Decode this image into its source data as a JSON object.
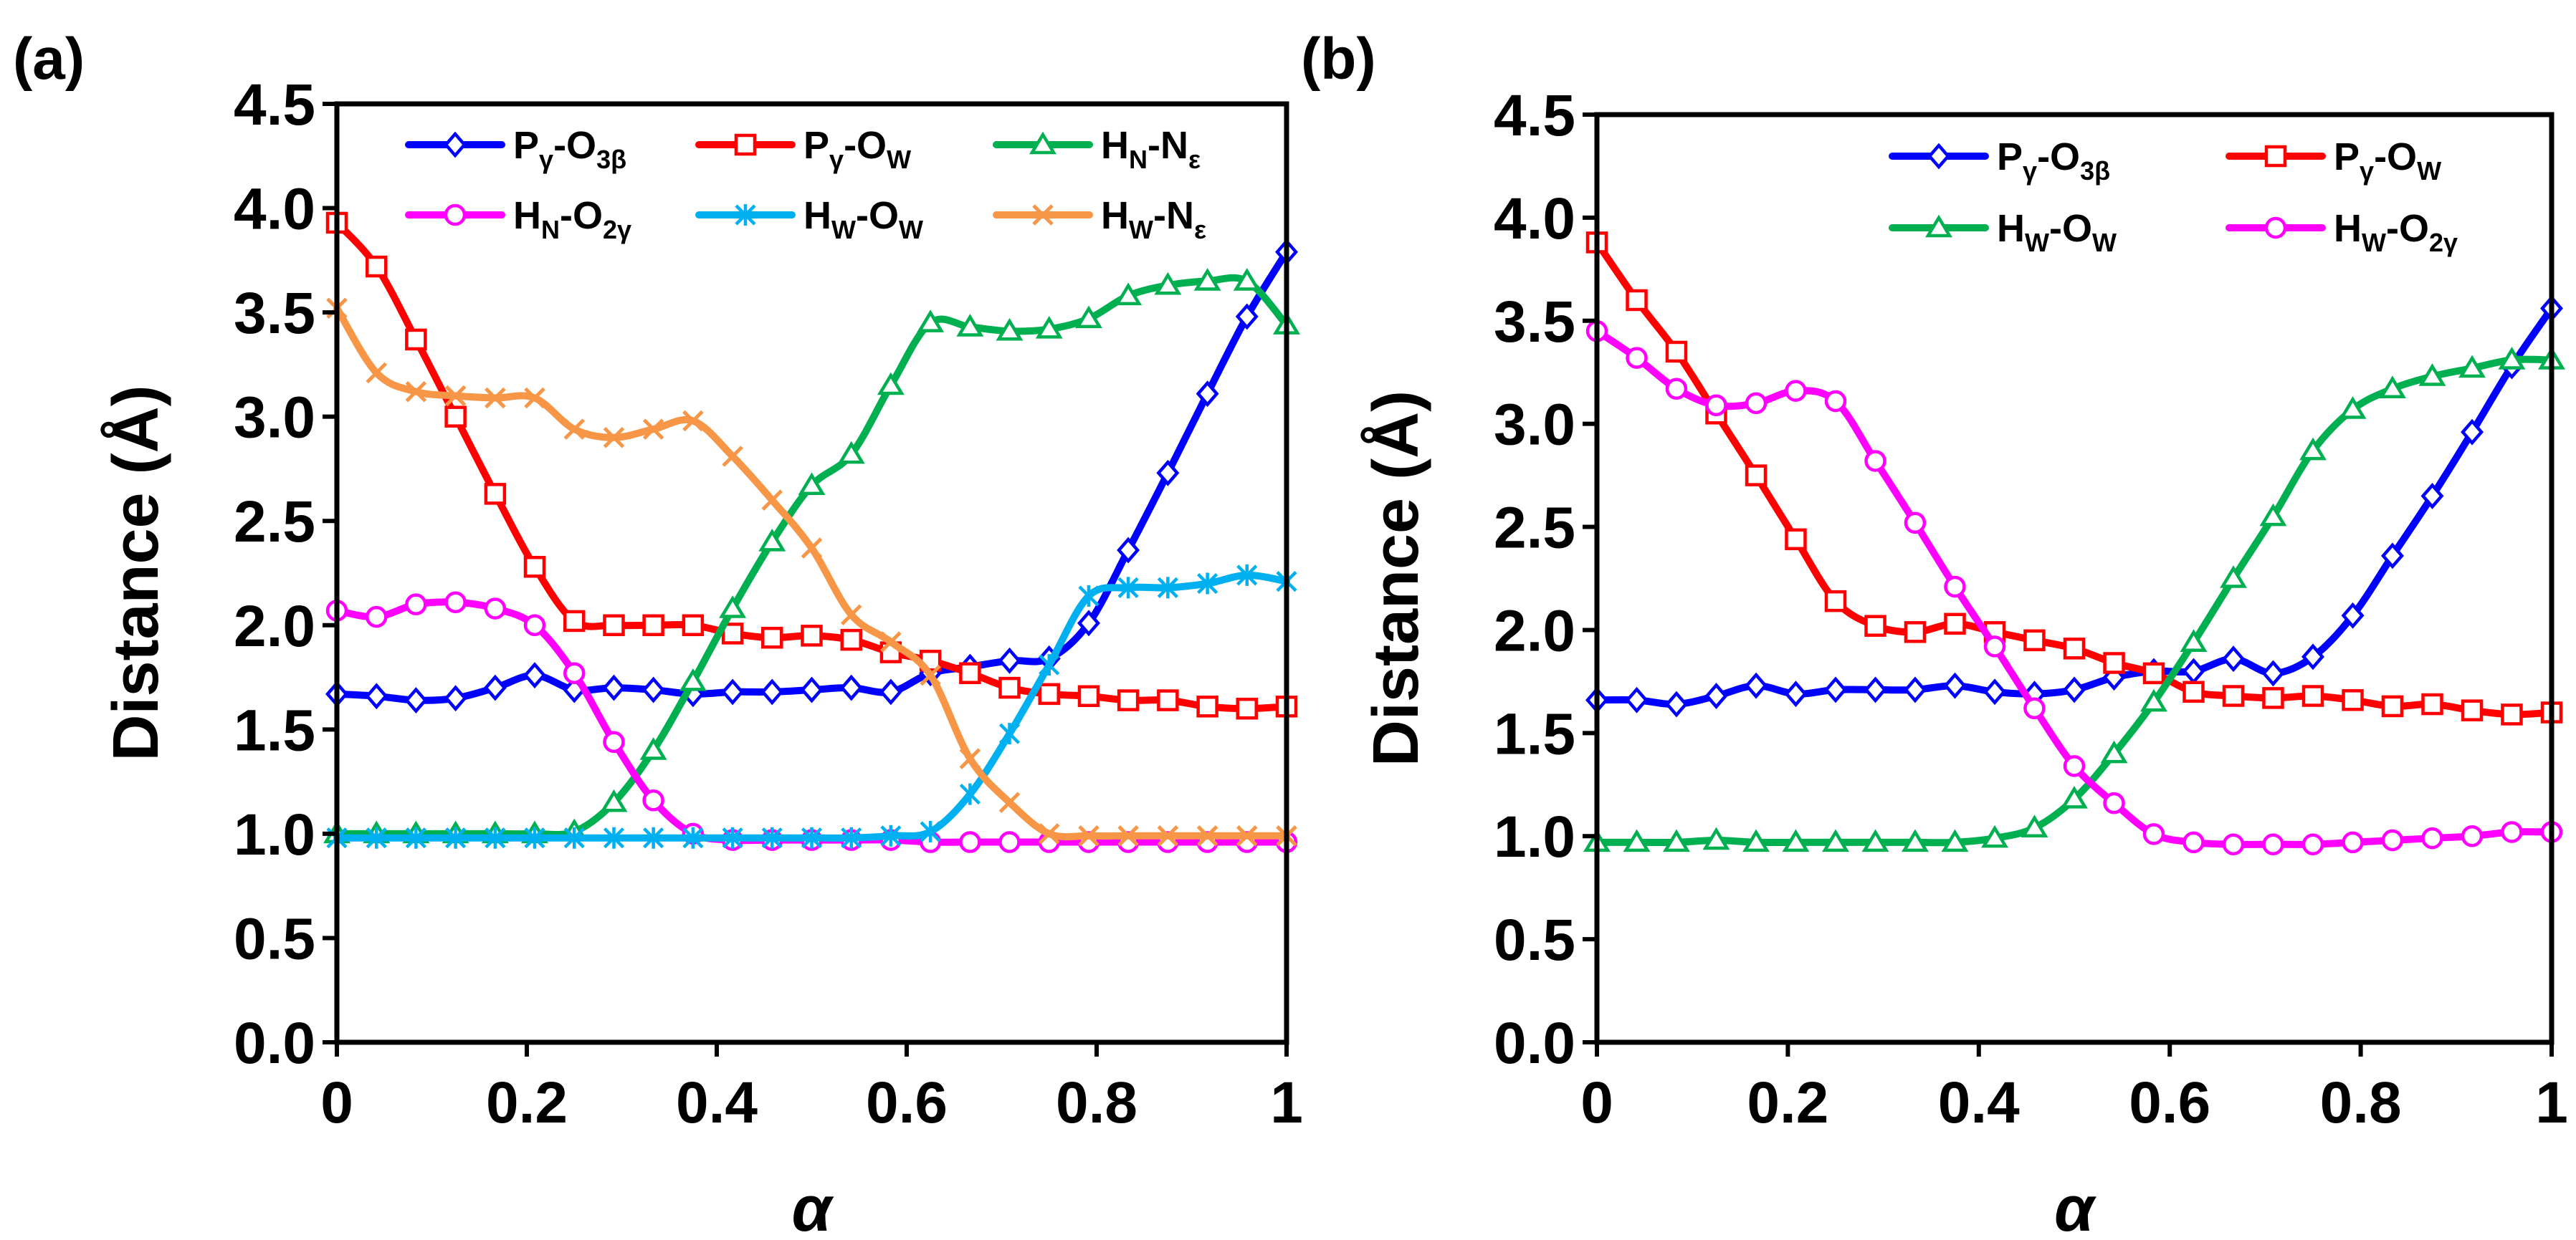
{
  "chart_data": [
    {
      "panel_label": "(a)",
      "type": "line",
      "xlabel": "α",
      "ylabel": "Distance (Å)",
      "xlim": [
        0,
        1
      ],
      "ylim": [
        0,
        4.5
      ],
      "xticks": [
        0,
        0.2,
        0.4,
        0.6,
        0.8,
        1
      ],
      "xtick_labels": [
        "0",
        "0.2",
        "0.4",
        "0.6",
        "0.8",
        "1"
      ],
      "yticks": [
        0,
        0.5,
        1,
        1.5,
        2,
        2.5,
        3,
        3.5,
        4,
        4.5
      ],
      "ytick_labels": [
        "0.0",
        "0.5",
        "1.0",
        "1.5",
        "2.0",
        "2.5",
        "3.0",
        "3.5",
        "4.0",
        "4.5"
      ],
      "x": [
        0,
        0.0417,
        0.0833,
        0.125,
        0.1667,
        0.2083,
        0.25,
        0.2917,
        0.3333,
        0.375,
        0.4167,
        0.4583,
        0.5,
        0.5417,
        0.5833,
        0.625,
        0.6667,
        0.7083,
        0.75,
        0.7917,
        0.8333,
        0.875,
        0.9167,
        0.9583,
        1
      ],
      "series": [
        {
          "name": "Pγ-O3β",
          "base": "P",
          "sub1": "γ",
          "mid": "-O",
          "sub2": "3β",
          "color": "#0000ff",
          "marker": "diamond",
          "values": [
            1.67,
            1.66,
            1.64,
            1.65,
            1.7,
            1.76,
            1.69,
            1.7,
            1.69,
            1.67,
            1.68,
            1.68,
            1.69,
            1.7,
            1.68,
            1.77,
            1.8,
            1.83,
            1.84,
            2.01,
            2.36,
            2.73,
            3.11,
            3.48,
            3.79
          ]
        },
        {
          "name": "Pγ-OW",
          "base": "P",
          "sub1": "γ",
          "mid": "-O",
          "sub2": "W",
          "color": "#ff0000",
          "marker": "square",
          "values": [
            3.93,
            3.72,
            3.37,
            3.0,
            2.63,
            2.28,
            2.02,
            2.0,
            2.0,
            2.0,
            1.96,
            1.94,
            1.95,
            1.93,
            1.87,
            1.83,
            1.77,
            1.7,
            1.67,
            1.66,
            1.64,
            1.64,
            1.61,
            1.6,
            1.61
          ]
        },
        {
          "name": "HN-Nε",
          "base": "H",
          "sub1": "N",
          "mid": "-N",
          "sub2": "ε",
          "color": "#00b050",
          "marker": "triangle",
          "values": [
            1.0,
            1.0,
            1.0,
            1.0,
            1.0,
            1.0,
            1.01,
            1.15,
            1.4,
            1.73,
            2.08,
            2.4,
            2.67,
            2.82,
            3.15,
            3.45,
            3.43,
            3.41,
            3.42,
            3.47,
            3.58,
            3.63,
            3.65,
            3.65,
            3.44
          ]
        },
        {
          "name": "HN-O2γ",
          "base": "H",
          "sub1": "N",
          "mid": "-O",
          "sub2": "2γ",
          "color": "#ff00ff",
          "marker": "circle",
          "values": [
            2.07,
            2.04,
            2.1,
            2.11,
            2.08,
            2.0,
            1.77,
            1.44,
            1.16,
            1.0,
            0.97,
            0.97,
            0.97,
            0.97,
            0.97,
            0.96,
            0.96,
            0.96,
            0.96,
            0.96,
            0.96,
            0.96,
            0.96,
            0.96,
            0.96
          ]
        },
        {
          "name": "HW-OW",
          "base": "H",
          "sub1": "W",
          "mid": "-O",
          "sub2": "W",
          "color": "#00b0f0",
          "marker": "star",
          "values": [
            0.98,
            0.98,
            0.98,
            0.98,
            0.98,
            0.98,
            0.98,
            0.98,
            0.98,
            0.98,
            0.98,
            0.98,
            0.98,
            0.98,
            0.99,
            1.01,
            1.19,
            1.48,
            1.81,
            2.14,
            2.18,
            2.18,
            2.2,
            2.24,
            2.21
          ]
        },
        {
          "name": "HW-Nε",
          "base": "H",
          "sub1": "W",
          "mid": "-N",
          "sub2": "ε",
          "color": "#f79646",
          "marker": "x",
          "values": [
            3.52,
            3.21,
            3.12,
            3.1,
            3.09,
            3.09,
            2.94,
            2.9,
            2.94,
            2.98,
            2.81,
            2.6,
            2.37,
            2.05,
            1.92,
            1.76,
            1.36,
            1.15,
            1.0,
            0.99,
            0.99,
            0.99,
            0.99,
            0.99,
            0.99
          ]
        }
      ]
    },
    {
      "panel_label": "(b)",
      "type": "line",
      "xlabel": "α",
      "ylabel": "Distance (Å)",
      "xlim": [
        0,
        1
      ],
      "ylim": [
        0,
        4.5
      ],
      "xticks": [
        0,
        0.2,
        0.4,
        0.6,
        0.8,
        1
      ],
      "xtick_labels": [
        "0",
        "0.2",
        "0.4",
        "0.6",
        "0.8",
        "1"
      ],
      "yticks": [
        0,
        0.5,
        1,
        1.5,
        2,
        2.5,
        3,
        3.5,
        4,
        4.5
      ],
      "ytick_labels": [
        "0.0",
        "0.5",
        "1.0",
        "1.5",
        "2.0",
        "2.5",
        "3.0",
        "3.5",
        "4.0",
        "4.5"
      ],
      "x": [
        0,
        0.0417,
        0.0833,
        0.125,
        0.1667,
        0.2083,
        0.25,
        0.2917,
        0.3333,
        0.375,
        0.4167,
        0.4583,
        0.5,
        0.5417,
        0.5833,
        0.625,
        0.6667,
        0.7083,
        0.75,
        0.7917,
        0.8333,
        0.875,
        0.9167,
        0.9583,
        1
      ],
      "series": [
        {
          "name": "Pγ-O3β",
          "base": "P",
          "sub1": "γ",
          "mid": "-O",
          "sub2": "3β",
          "color": "#0000ff",
          "marker": "diamond",
          "values": [
            1.66,
            1.66,
            1.64,
            1.68,
            1.73,
            1.69,
            1.71,
            1.71,
            1.71,
            1.73,
            1.7,
            1.69,
            1.71,
            1.77,
            1.8,
            1.8,
            1.86,
            1.79,
            1.87,
            2.07,
            2.36,
            2.65,
            2.96,
            3.28,
            3.56
          ]
        },
        {
          "name": "Pγ-OW",
          "base": "P",
          "sub1": "γ",
          "mid": "-O",
          "sub2": "W",
          "color": "#ff0000",
          "marker": "square",
          "values": [
            3.88,
            3.6,
            3.35,
            3.05,
            2.75,
            2.44,
            2.14,
            2.02,
            1.99,
            2.03,
            1.99,
            1.95,
            1.91,
            1.84,
            1.79,
            1.7,
            1.68,
            1.67,
            1.68,
            1.66,
            1.63,
            1.64,
            1.61,
            1.59,
            1.6
          ]
        },
        {
          "name": "HW-OW",
          "base": "H",
          "sub1": "W",
          "mid": "-O",
          "sub2": "W",
          "color": "#00b050",
          "marker": "triangle",
          "values": [
            0.97,
            0.97,
            0.97,
            0.98,
            0.97,
            0.97,
            0.97,
            0.97,
            0.97,
            0.97,
            0.99,
            1.04,
            1.18,
            1.4,
            1.65,
            1.94,
            2.25,
            2.55,
            2.87,
            3.07,
            3.17,
            3.23,
            3.27,
            3.31,
            3.31
          ]
        },
        {
          "name": "HW-O2γ",
          "base": "H",
          "sub1": "W",
          "mid": "-O",
          "sub2": "2γ",
          "color": "#ff00ff",
          "marker": "circle",
          "values": [
            3.45,
            3.32,
            3.17,
            3.09,
            3.1,
            3.16,
            3.11,
            2.82,
            2.52,
            2.21,
            1.92,
            1.62,
            1.34,
            1.16,
            1.01,
            0.97,
            0.96,
            0.96,
            0.96,
            0.97,
            0.98,
            0.99,
            1.0,
            1.02,
            1.02
          ]
        }
      ]
    }
  ]
}
